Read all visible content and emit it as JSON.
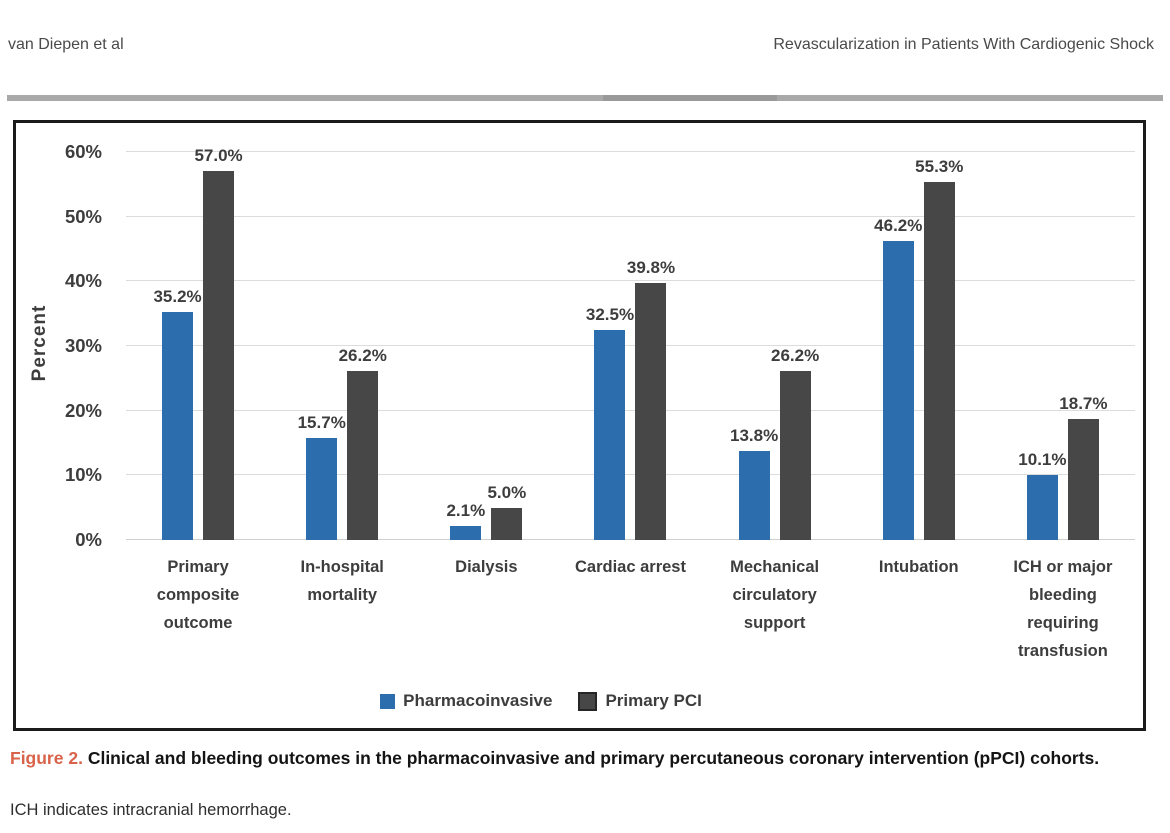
{
  "page": {
    "running_head_left": "van Diepen et al",
    "running_head_right": "Revascularization in Patients With Cardiogenic Shock"
  },
  "chart_data": {
    "type": "bar",
    "title": "",
    "xlabel": "",
    "ylabel": "Percent",
    "ylim": [
      0,
      65
    ],
    "ytick_values": [
      0,
      10,
      20,
      30,
      40,
      50,
      60
    ],
    "ytick_suffix": "%",
    "grid": true,
    "legend_position": "bottom-center",
    "value_label_style": "outside-end, one decimal, percent sign",
    "categories": [
      "Primary composite outcome",
      "In-hospital mortality",
      "Dialysis",
      "Cardiac arrest",
      "Mechanical circulatory support",
      "Intubation",
      "ICH or major bleeding requiring transfusion"
    ],
    "series": [
      {
        "name": "Pharmacoinvasive",
        "color": "#2b6dad",
        "values": [
          35.2,
          15.7,
          2.1,
          32.5,
          13.8,
          46.2,
          10.1
        ]
      },
      {
        "name": "Primary PCI",
        "color": "#474747",
        "values": [
          57.0,
          26.2,
          5.0,
          39.8,
          26.2,
          55.3,
          18.7
        ]
      }
    ]
  },
  "caption": {
    "label": "Figure 2.",
    "label_color": "#d9634a",
    "title": "Clinical and bleeding outcomes in the pharmacoinvasive and primary percutaneous coronary intervention (pPCI) cohorts.",
    "note": "ICH indicates intracranial hemorrhage."
  }
}
